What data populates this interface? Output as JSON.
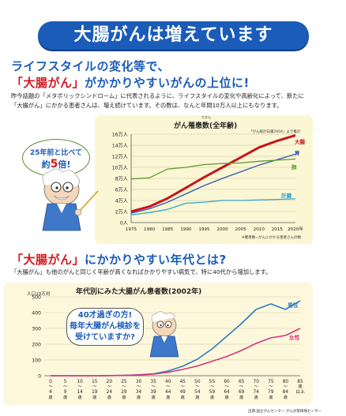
{
  "banner": "大腸がんは増えています",
  "section1": {
    "heading_line1": "ライフスタイルの変化等で、",
    "heading_line2_red": "「大腸がん」",
    "heading_line2_rest": "がかかりやすいがんの上位に!",
    "body_line1": "昨今話題の「メタボリックシンドローム」に代表されるように、ライフスタイルの変化や高齢化によって、新たに",
    "body_line2": "「大腸がん」にかかる患者さんは、増え続けています。その数は、なんと年間10万人以上にもなります。"
  },
  "bubble1": {
    "line1": "25年前と比べて",
    "line2_prefix": "約",
    "line2_num": "5",
    "line2_suffix": "倍!"
  },
  "section2": {
    "heading_red": "「大腸がん」",
    "heading_rest": "にかかりやすい年代とは?",
    "body_line1": "「大腸がん」も他のがんと同じく年齢が高くなればかかりやすい病気で、特に40代から増加します。"
  },
  "bubble2": {
    "line1": "40才過ぎの方!",
    "line2": "毎年大腸がん検診を",
    "line3": "受けていますか?"
  },
  "colors": {
    "banner": "#1a5cb8",
    "daicho": "#c8141a",
    "i": "#2e57b0",
    "hai": "#5c9a2c",
    "kan": "#35a7cf",
    "male": "#2e7cc4",
    "female": "#d6357e"
  },
  "chart_data": [
    {
      "type": "line",
      "title": "がん罹患数(全年齢)",
      "title_ruby": "りかん",
      "source_note": "「がん統計白書2004」より推計",
      "footnote": "※罹患数=がんにかかる患者さんの数",
      "ylabels": [
        "0人",
        "2万人",
        "4万人",
        "6万人",
        "8万人",
        "10万人",
        "12万人",
        "14万人",
        "16万人"
      ],
      "xlabels": [
        "1975",
        "1980",
        "1985",
        "1990",
        "1995",
        "2000",
        "2005",
        "2010",
        "2015",
        "2020年"
      ],
      "x": [
        1975,
        1980,
        1985,
        1990,
        1995,
        2000,
        2005,
        2010,
        2015,
        2020
      ],
      "ylim": [
        0,
        16
      ],
      "series": [
        {
          "name": "大腸",
          "values": [
            2.0,
            2.9,
            4.4,
            6.3,
            8.2,
            10.0,
            11.8,
            13.6,
            14.8,
            15.8
          ]
        },
        {
          "name": "胃",
          "values": [
            1.7,
            2.5,
            3.7,
            5.2,
            6.7,
            8.0,
            9.2,
            10.4,
            11.4,
            12.4
          ]
        },
        {
          "name": "肺",
          "values": [
            7.9,
            8.1,
            9.7,
            10.0,
            10.5,
            10.7,
            10.8,
            11.1,
            11.3,
            11.5
          ]
        },
        {
          "name": "肝臓",
          "values": [
            1.4,
            1.8,
            2.4,
            3.5,
            3.7,
            4.0,
            4.0,
            4.1,
            4.2,
            4.3
          ]
        }
      ]
    },
    {
      "type": "line",
      "title": "年代別にみた大腸がん患者数(2002年)",
      "ylabel": "人口10万対",
      "ylabels": [
        "0",
        "100",
        "200",
        "300",
        "400",
        "500"
      ],
      "ylim": [
        0,
        500
      ],
      "categories": [
        "0〜4歳",
        "5〜9歳",
        "10〜14歳",
        "15〜19歳",
        "20〜24歳",
        "25〜29歳",
        "30〜34歳",
        "35〜39歳",
        "40〜44歳",
        "45〜49歳",
        "50〜54歳",
        "55〜59歳",
        "60〜64歳",
        "65〜69歳",
        "70〜74歳",
        "75〜79歳",
        "80〜84歳",
        "85歳以上"
      ],
      "cat_top": [
        "0",
        "5",
        "10",
        "15",
        "20",
        "25",
        "30",
        "35",
        "40",
        "45",
        "50",
        "55",
        "60",
        "65",
        "70",
        "75",
        "80",
        "85"
      ],
      "cat_sep": [
        "〜",
        "〜",
        "〜",
        "〜",
        "〜",
        "〜",
        "〜",
        "〜",
        "〜",
        "〜",
        "〜",
        "〜",
        "〜",
        "〜",
        "〜",
        "〜",
        "〜",
        "歳"
      ],
      "cat_bot": [
        "4",
        "9",
        "14",
        "19",
        "24",
        "29",
        "34",
        "39",
        "44",
        "49",
        "54",
        "59",
        "64",
        "69",
        "74",
        "79",
        "84",
        "以上"
      ],
      "cat_unit": [
        "歳",
        "歳",
        "歳",
        "歳",
        "歳",
        "歳",
        "歳",
        "歳",
        "歳",
        "歳",
        "歳",
        "歳",
        "歳",
        "歳",
        "歳",
        "歳",
        "歳",
        ""
      ],
      "series": [
        {
          "name": "男性",
          "values": [
            0,
            0,
            0,
            0,
            1,
            2,
            6,
            12,
            30,
            60,
            105,
            170,
            250,
            330,
            420,
            455,
            420,
            475
          ]
        },
        {
          "name": "女性",
          "values": [
            0,
            0,
            0,
            0,
            1,
            2,
            5,
            10,
            22,
            40,
            62,
            92,
            122,
            160,
            205,
            240,
            255,
            300
          ]
        }
      ],
      "source": "出典:国立がんセンター がん対策情報センター"
    }
  ]
}
